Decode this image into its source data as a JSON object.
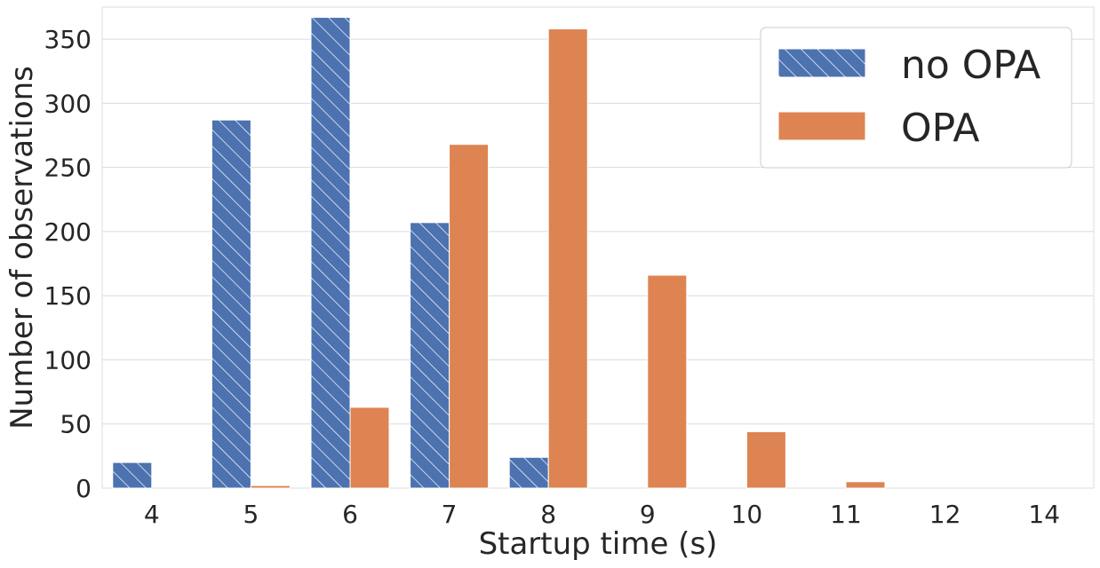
{
  "chart_data": {
    "type": "bar",
    "xlabel": "Startup time (s)",
    "ylabel": "Number of observations",
    "categories": [
      "4",
      "5",
      "6",
      "7",
      "8",
      "9",
      "10",
      "11",
      "12",
      "14"
    ],
    "series": [
      {
        "name": "no OPA",
        "color": "#4c72b0",
        "hatch": "diagonal",
        "values": [
          20,
          287,
          367,
          207,
          24,
          0,
          0,
          0,
          0,
          0
        ]
      },
      {
        "name": "OPA",
        "color": "#dd8452",
        "hatch": "none",
        "values": [
          0,
          2,
          63,
          268,
          358,
          166,
          44,
          5,
          0,
          0
        ]
      }
    ],
    "ylim": [
      0,
      375
    ],
    "yticks": [
      0,
      50,
      100,
      150,
      200,
      250,
      300,
      350
    ],
    "grid": "horizontal",
    "legend_position": "top-right"
  }
}
